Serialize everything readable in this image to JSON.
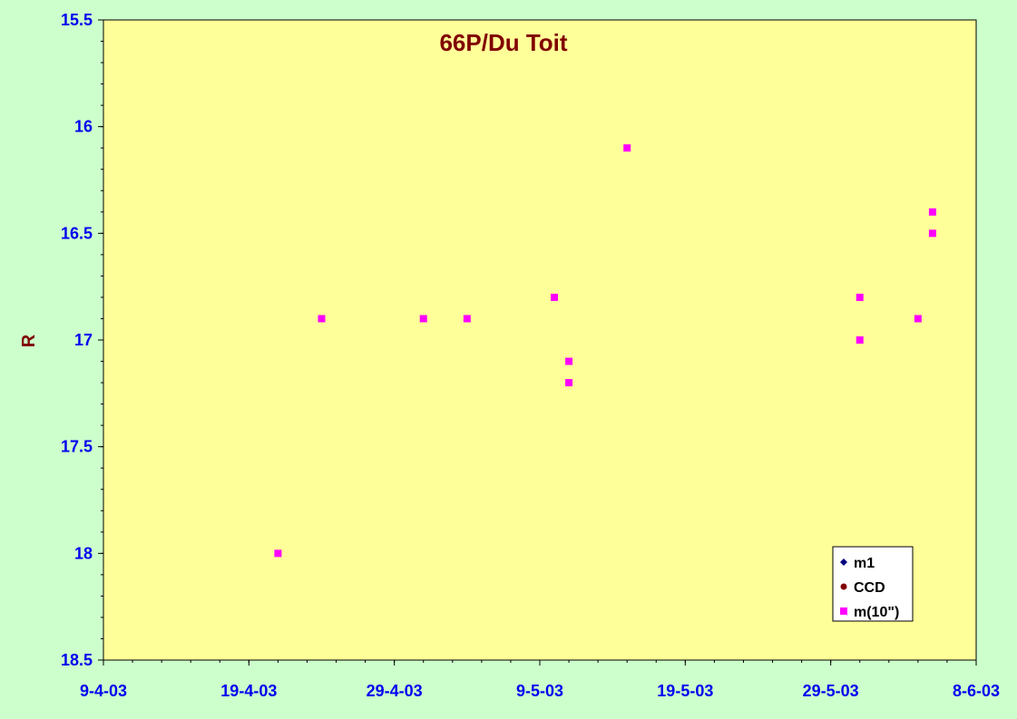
{
  "chart_data": {
    "type": "scatter",
    "title": "66P/Du Toit",
    "xlabel": "",
    "ylabel": "R",
    "xlim": [
      "2003-04-09",
      "2003-06-08"
    ],
    "ylim": [
      15.5,
      18.5
    ],
    "y_reversed": true,
    "x_tick_labels": [
      "9-4-03",
      "19-4-03",
      "29-4-03",
      "9-5-03",
      "19-5-03",
      "29-5-03",
      "8-6-03"
    ],
    "y_tick_labels": [
      "15.5",
      "16",
      "16.5",
      "17",
      "17.5",
      "18",
      "18.5"
    ],
    "grid": false,
    "legend_position": "bottom-right",
    "series": [
      {
        "name": "m1",
        "marker": "diamond",
        "color": "#000080",
        "points": []
      },
      {
        "name": "CCD",
        "marker": "circle",
        "color": "#800000",
        "points": []
      },
      {
        "name": "m(10\")",
        "marker": "square",
        "color": "#ff00ff",
        "points": [
          {
            "x": "2003-04-21",
            "y": 18.0
          },
          {
            "x": "2003-04-24",
            "y": 16.9
          },
          {
            "x": "2003-05-01",
            "y": 16.9
          },
          {
            "x": "2003-05-04",
            "y": 16.9
          },
          {
            "x": "2003-05-10",
            "y": 16.8
          },
          {
            "x": "2003-05-11",
            "y": 17.1
          },
          {
            "x": "2003-05-11",
            "y": 17.2
          },
          {
            "x": "2003-05-15",
            "y": 16.1
          },
          {
            "x": "2003-05-31",
            "y": 16.8
          },
          {
            "x": "2003-05-31",
            "y": 17.0
          },
          {
            "x": "2003-06-04",
            "y": 16.9
          },
          {
            "x": "2003-06-05",
            "y": 16.4
          },
          {
            "x": "2003-06-05",
            "y": 16.5
          }
        ]
      }
    ]
  },
  "colors": {
    "background": "#ccffcc",
    "plot_area": "#ffff99",
    "tick_labels": "#0000ee",
    "title": "#800000"
  }
}
